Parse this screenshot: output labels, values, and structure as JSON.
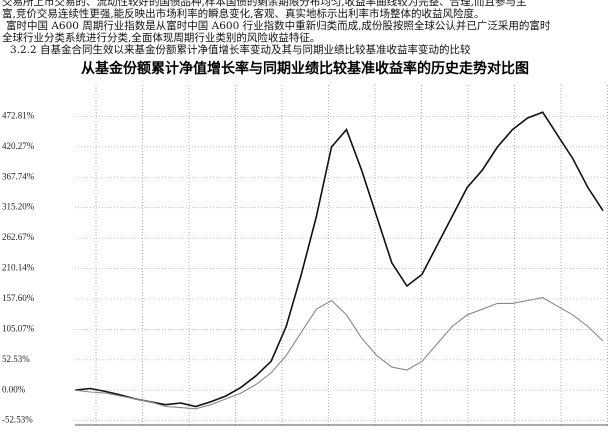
{
  "paragraphs": [
    "交易所上市交易的、流动性较好的国债品种,样本国债的剩余期限分布均匀,收益率曲线较为完整、合理,而且参与主",
    "富,竞价交易连续性更强,能反映出市场利率的瞬息变化,客观、真实地标示出利率市场整体的收益风险度。",
    "富时中国 A600 周期行业指数是从富时中国 A600 行业指数中重新归类而成,成份股按照全球公认并已广泛采用的富时",
    "全球行业分类系统进行分类,全面体现周期行业类别的风险收益特征。"
  ],
  "section_heading": "3.2.2 自基金合同生效以来基金份额累计净值增长率变动及其与同期业绩比较基准收益率变动的比较",
  "chart_data": {
    "type": "line",
    "title": "从基金份额累计净值增长率与同期业绩比较基准收益率的历史走势对比图",
    "ylim": [
      -60,
      527
    ],
    "yticks": [
      {
        "value": -52.53,
        "label": "-52.53%"
      },
      {
        "value": 0,
        "label": "0.00%"
      },
      {
        "value": 52.53,
        "label": "52.53%"
      },
      {
        "value": 105.07,
        "label": "105.07%"
      },
      {
        "value": 157.6,
        "label": "157.60%"
      },
      {
        "value": 210.14,
        "label": "210.14%"
      },
      {
        "value": 262.67,
        "label": "262.67%"
      },
      {
        "value": 315.2,
        "label": "315.20%"
      },
      {
        "value": 367.74,
        "label": "367.74%"
      },
      {
        "value": 420.27,
        "label": "420.27%"
      },
      {
        "value": 472.81,
        "label": "472.81%"
      }
    ],
    "grid": true,
    "series": [
      {
        "color": "#111111",
        "values": [
          0,
          3,
          -2,
          -8,
          -15,
          -20,
          -25,
          -22,
          -28,
          -20,
          -10,
          5,
          25,
          50,
          110,
          200,
          300,
          420,
          450,
          380,
          300,
          220,
          180,
          200,
          250,
          300,
          350,
          380,
          420,
          450,
          470,
          480,
          440,
          400,
          350,
          310
        ]
      },
      {
        "color": "#888888",
        "values": [
          0,
          -3,
          -5,
          -10,
          -15,
          -20,
          -28,
          -30,
          -32,
          -25,
          -15,
          -5,
          10,
          30,
          60,
          100,
          140,
          155,
          130,
          90,
          60,
          40,
          35,
          50,
          80,
          110,
          130,
          140,
          150,
          150,
          155,
          160,
          145,
          130,
          110,
          85
        ]
      }
    ]
  }
}
